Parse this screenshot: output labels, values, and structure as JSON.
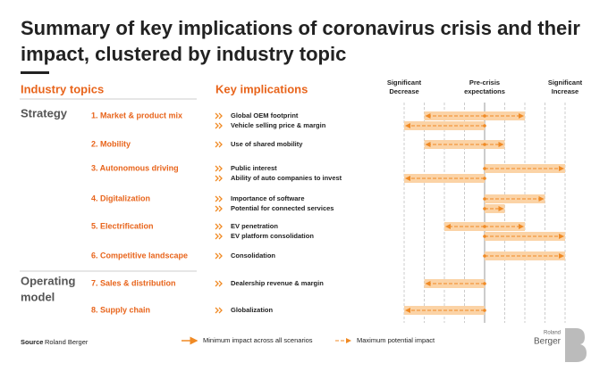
{
  "title": [
    "Summary of key implications of coronavirus crisis and their",
    "impact, clustered by industry topic"
  ],
  "headers": {
    "topics": "Industry topics",
    "implications": "Key implications"
  },
  "scale": {
    "xlim": [
      -4,
      4
    ],
    "xticks": [
      -4,
      -3,
      -2,
      -1,
      0,
      1,
      2,
      3,
      4
    ],
    "labels": [
      {
        "value": -4,
        "label": [
          "Significant",
          "Decrease"
        ]
      },
      {
        "value": 0,
        "label": [
          "Pre-crisis",
          "expectations"
        ]
      },
      {
        "value": 4,
        "label": [
          "Significant",
          "Increase"
        ]
      }
    ]
  },
  "groups": [
    {
      "name": [
        "Strategy"
      ],
      "topics": [
        {
          "label": "1. Market & product mix",
          "implications": [
            {
              "label": "Global OEM footprint",
              "low": -3,
              "high": 2
            },
            {
              "label": "Vehicle selling price & margin",
              "low": -4,
              "high": 0
            }
          ]
        },
        {
          "label": "2. Mobility",
          "implications": [
            {
              "label": "Use of shared mobility",
              "low": -3,
              "high": 1
            }
          ]
        },
        {
          "label": "3. Autonomous driving",
          "implications": [
            {
              "label": "Public interest",
              "low": 0,
              "high": 4
            },
            {
              "label": "Ability of auto companies to invest",
              "low": -4,
              "high": 0
            }
          ]
        },
        {
          "label": "4. Digitalization",
          "implications": [
            {
              "label": "Importance of software",
              "low": 0,
              "high": 3
            },
            {
              "label": "Potential for connected services",
              "low": 0,
              "high": 1
            }
          ]
        },
        {
          "label": "5. Electrification",
          "implications": [
            {
              "label": "EV penetration",
              "low": -2,
              "high": 2
            },
            {
              "label": "EV platform consolidation",
              "low": 0,
              "high": 4
            }
          ]
        },
        {
          "label": "6. Competitive landscape",
          "implications": [
            {
              "label": "Consolidation",
              "low": 0,
              "high": 4
            }
          ]
        }
      ]
    },
    {
      "name": [
        "Operating",
        "model"
      ],
      "topics": [
        {
          "label": "7. Sales & distribution",
          "implications": [
            {
              "label": "Dealership revenue & margin",
              "low": -3,
              "high": 0
            }
          ]
        },
        {
          "label": "8. Supply chain",
          "implications": [
            {
              "label": "Globalization",
              "low": -4,
              "high": 0
            }
          ]
        }
      ]
    }
  ],
  "legend": {
    "min": "Minimum impact across all scenarios",
    "max": "Maximum potential impact"
  },
  "source": {
    "label": "Source",
    "text": "Roland Berger"
  },
  "logo": [
    "Roland",
    "Berger"
  ]
}
